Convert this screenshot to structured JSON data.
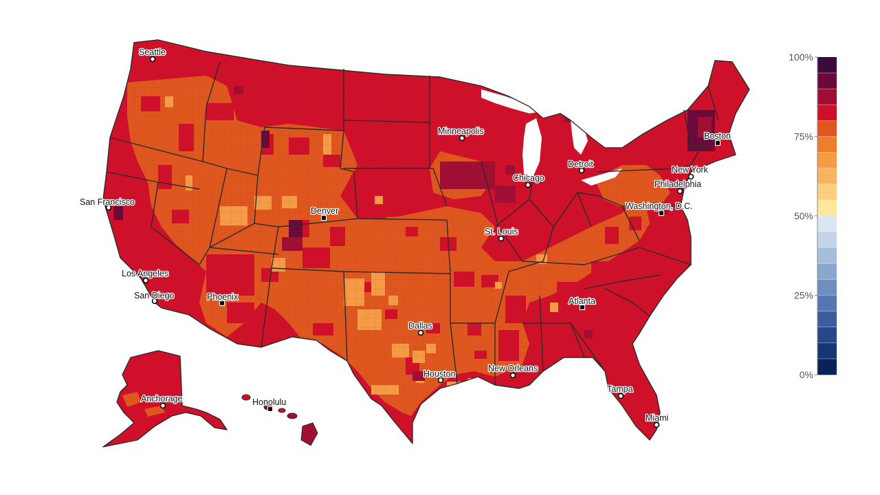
{
  "legend": {
    "labels": [
      {
        "text": "100%",
        "value": 100
      },
      {
        "text": "75%",
        "value": 75
      },
      {
        "text": "50%",
        "value": 50
      },
      {
        "text": "25%",
        "value": 25
      },
      {
        "text": "0%",
        "value": 0
      }
    ],
    "bins": [
      {
        "min": 95,
        "color": "#3d0a3e"
      },
      {
        "min": 90,
        "color": "#6b0a3a"
      },
      {
        "min": 85,
        "color": "#a00f33"
      },
      {
        "min": 80,
        "color": "#d0102a"
      },
      {
        "min": 75,
        "color": "#e0561f"
      },
      {
        "min": 70,
        "color": "#ee7d2c"
      },
      {
        "min": 65,
        "color": "#f59a45"
      },
      {
        "min": 60,
        "color": "#f8b462"
      },
      {
        "min": 55,
        "color": "#fbcf7d"
      },
      {
        "min": 50,
        "color": "#fce79a"
      },
      {
        "min": 45,
        "color": "#dbe6f3"
      },
      {
        "min": 40,
        "color": "#c3d3e9"
      },
      {
        "min": 35,
        "color": "#a6bddc"
      },
      {
        "min": 30,
        "color": "#8aa7d0"
      },
      {
        "min": 25,
        "color": "#6f8fc2"
      },
      {
        "min": 20,
        "color": "#5676b1"
      },
      {
        "min": 15,
        "color": "#3d5c9c"
      },
      {
        "min": 10,
        "color": "#274788"
      },
      {
        "min": 5,
        "color": "#163574"
      },
      {
        "min": 0,
        "color": "#0b2257"
      }
    ]
  },
  "colors": {
    "red": "#d0102a",
    "orange": "#e0561f",
    "light_orange": "#f59a45",
    "crimson": "#a00f33",
    "plum": "#6b0a3a",
    "state_border": "#2b2b2b"
  },
  "cities": [
    {
      "name": "Seattle",
      "marker": "dot"
    },
    {
      "name": "San Francisco",
      "marker": "dot"
    },
    {
      "name": "Los Angeles",
      "marker": "dot"
    },
    {
      "name": "San Diego",
      "marker": "dot"
    },
    {
      "name": "Phoenix",
      "marker": "square"
    },
    {
      "name": "Denver",
      "marker": "square"
    },
    {
      "name": "Minneapolis",
      "marker": "dot"
    },
    {
      "name": "Chicago",
      "marker": "dot"
    },
    {
      "name": "Detroit",
      "marker": "dot"
    },
    {
      "name": "St. Louis",
      "marker": "dot"
    },
    {
      "name": "Dallas",
      "marker": "dot"
    },
    {
      "name": "Houston",
      "marker": "dot"
    },
    {
      "name": "New Orleans",
      "marker": "dot"
    },
    {
      "name": "Atlanta",
      "marker": "square"
    },
    {
      "name": "Tampa",
      "marker": "dot"
    },
    {
      "name": "Miami",
      "marker": "dot"
    },
    {
      "name": "Washington, D.C.",
      "marker": "square"
    },
    {
      "name": "Philadelphia",
      "marker": "dot"
    },
    {
      "name": "New York",
      "marker": "dot"
    },
    {
      "name": "Boston",
      "marker": "square"
    },
    {
      "name": "Anchorage",
      "marker": "dot"
    },
    {
      "name": "Honolulu",
      "marker": "square"
    }
  ]
}
